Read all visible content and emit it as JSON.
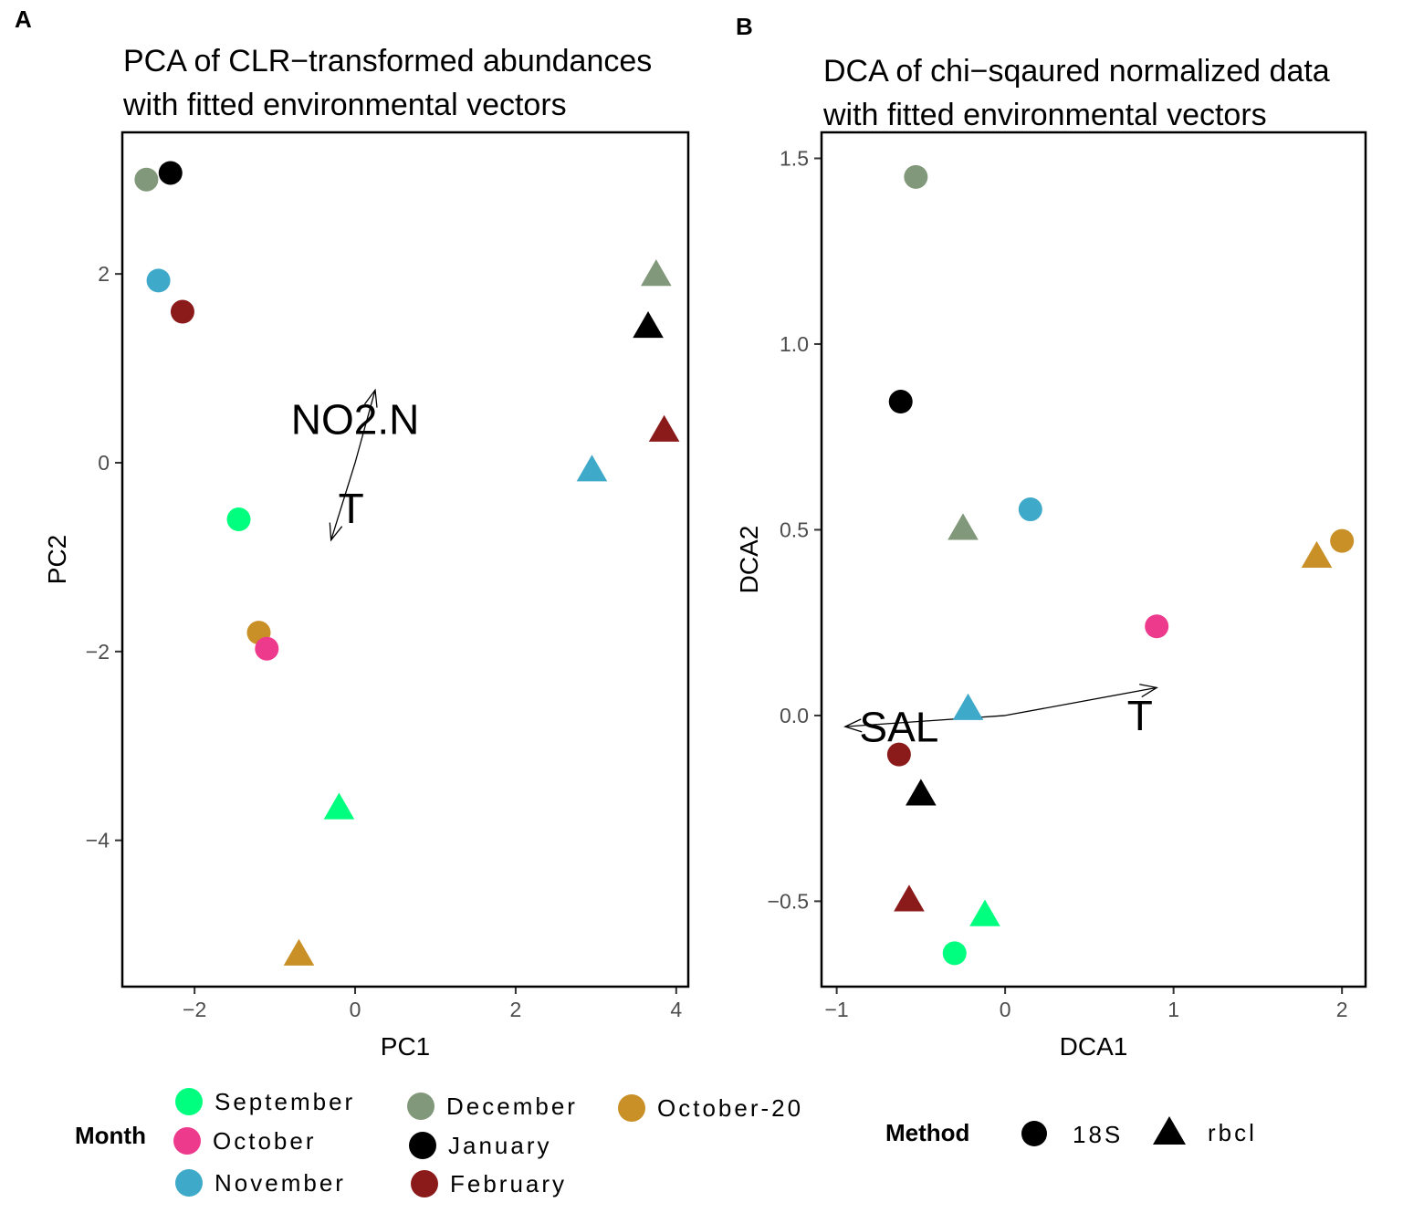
{
  "colors": {
    "September": "#00ff7f",
    "October": "#ee3a8c",
    "November": "#3fa9c9",
    "December": "#82987a",
    "January": "#000000",
    "February": "#8b1a1a",
    "October-20": "#c99027"
  },
  "chart_data": [
    {
      "panel_tag": "A",
      "type": "scatter",
      "title": [
        "PCA of CLR−transformed abundances",
        "with fitted environmental vectors"
      ],
      "xlabel": "PC1",
      "ylabel": "PC2",
      "xlim": [
        -2.9,
        4.15
      ],
      "ylim": [
        -5.55,
        3.5
      ],
      "xticks": [
        -2,
        0,
        2,
        4
      ],
      "xtick_labels": [
        "−2",
        "0",
        "2",
        "4"
      ],
      "yticks": [
        -4,
        -2,
        0,
        2
      ],
      "ytick_labels": [
        "−4",
        "−2",
        "0",
        "2"
      ],
      "points": [
        {
          "month": "December",
          "method": "18S",
          "x": -2.6,
          "y": 3.0
        },
        {
          "month": "January",
          "method": "18S",
          "x": -2.3,
          "y": 3.07
        },
        {
          "month": "November",
          "method": "18S",
          "x": -2.45,
          "y": 1.93
        },
        {
          "month": "February",
          "method": "18S",
          "x": -2.15,
          "y": 1.6
        },
        {
          "month": "September",
          "method": "18S",
          "x": -1.45,
          "y": -0.6
        },
        {
          "month": "October-20",
          "method": "18S",
          "x": -1.2,
          "y": -1.8
        },
        {
          "month": "October",
          "method": "18S",
          "x": -1.1,
          "y": -1.97
        },
        {
          "month": "December",
          "method": "rbcl",
          "x": 3.75,
          "y": 2.0
        },
        {
          "month": "January",
          "method": "rbcl",
          "x": 3.65,
          "y": 1.45
        },
        {
          "month": "February",
          "method": "rbcl",
          "x": 3.85,
          "y": 0.35
        },
        {
          "month": "November",
          "method": "rbcl",
          "x": 2.95,
          "y": -0.07
        },
        {
          "month": "September",
          "method": "rbcl",
          "x": -0.2,
          "y": -3.65
        },
        {
          "month": "October-20",
          "method": "rbcl",
          "x": -0.7,
          "y": -5.2
        }
      ],
      "vectors": [
        {
          "label": "NO2.N",
          "x": 0.25,
          "y": 0.77,
          "label_x": 0.0,
          "label_y": 0.42
        },
        {
          "label": "T",
          "x": -0.3,
          "y": -0.82,
          "label_x": -0.05,
          "label_y": -0.52
        }
      ]
    },
    {
      "panel_tag": "B",
      "type": "scatter",
      "title": [
        "DCA of chi−sqaured normalized data",
        "with fitted environmental vectors"
      ],
      "xlabel": "DCA1",
      "ylabel": "DCA2",
      "xlim": [
        -1.09,
        2.14
      ],
      "ylim": [
        -0.73,
        1.57
      ],
      "xticks": [
        -1,
        0,
        1,
        2
      ],
      "xtick_labels": [
        "−1",
        "0",
        "1",
        "2"
      ],
      "yticks": [
        -0.5,
        0.0,
        0.5,
        1.0,
        1.5
      ],
      "ytick_labels": [
        "−0.5",
        "0.0",
        "0.5",
        "1.0",
        "1.5"
      ],
      "points": [
        {
          "month": "December",
          "method": "18S",
          "x": -0.53,
          "y": 1.45
        },
        {
          "month": "January",
          "method": "18S",
          "x": -0.62,
          "y": 0.845
        },
        {
          "month": "November",
          "method": "18S",
          "x": 0.15,
          "y": 0.555
        },
        {
          "month": "October-20",
          "method": "18S",
          "x": 2.0,
          "y": 0.47
        },
        {
          "month": "October",
          "method": "18S",
          "x": 0.9,
          "y": 0.24
        },
        {
          "month": "February",
          "method": "18S",
          "x": -0.63,
          "y": -0.105
        },
        {
          "month": "September",
          "method": "18S",
          "x": -0.3,
          "y": -0.64
        },
        {
          "month": "December",
          "method": "rbcl",
          "x": -0.25,
          "y": 0.505
        },
        {
          "month": "October-20",
          "method": "rbcl",
          "x": 1.85,
          "y": 0.43
        },
        {
          "month": "November",
          "method": "rbcl",
          "x": -0.22,
          "y": 0.02
        },
        {
          "month": "January",
          "method": "rbcl",
          "x": -0.5,
          "y": -0.21
        },
        {
          "month": "February",
          "method": "rbcl",
          "x": -0.57,
          "y": -0.495
        },
        {
          "month": "September",
          "method": "rbcl",
          "x": -0.12,
          "y": -0.535
        }
      ],
      "vectors": [
        {
          "label": "SAL",
          "x": -0.95,
          "y": -0.03,
          "label_x": -0.63,
          "label_y": -0.04
        },
        {
          "label": "T",
          "x": 0.9,
          "y": 0.075,
          "label_x": 0.8,
          "label_y": -0.01
        }
      ]
    }
  ],
  "legend": {
    "month_title": "Month",
    "months": [
      "September",
      "October",
      "November",
      "December",
      "January",
      "February",
      "October-20"
    ],
    "method_title": "Method",
    "methods": [
      "18S",
      "rbcl"
    ]
  }
}
